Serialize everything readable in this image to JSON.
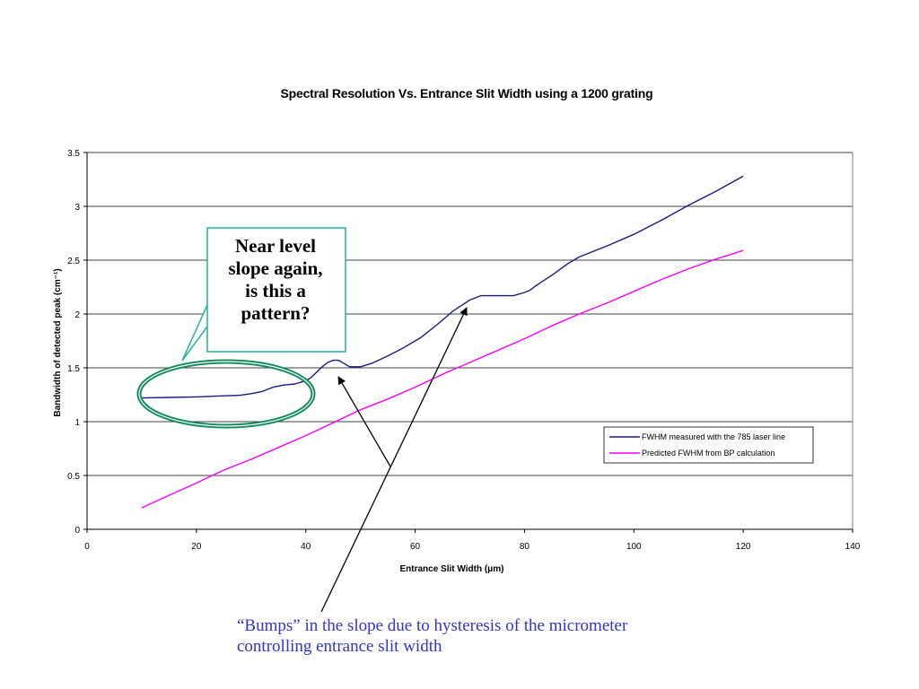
{
  "chart_data": {
    "type": "line",
    "title": "Spectral Resolution Vs. Entrance Slit Width using a 1200 grating",
    "xlabel": "Entrance Slit Width (μm)",
    "ylabel": "Bandwidth of detected peak (cm⁻¹)",
    "xlim": [
      0,
      140
    ],
    "ylim": [
      0,
      3.5
    ],
    "xticks": [
      0,
      20,
      40,
      60,
      80,
      100,
      120,
      140
    ],
    "yticks": [
      0,
      0.5,
      1,
      1.5,
      2,
      2.5,
      3,
      3.5
    ],
    "xtick_labels": [
      "0",
      "20",
      "40",
      "60",
      "80",
      "100",
      "120",
      "140"
    ],
    "ytick_labels": [
      "0",
      "0.5",
      "1",
      "1.5",
      "2",
      "2.5",
      "3",
      "3.5"
    ],
    "grid": "horizontal",
    "legend_position": "bottom-right",
    "series": [
      {
        "name": "FWHM measured with the 785 laser line",
        "color": "#1a1a80",
        "x": [
          10,
          15,
          20,
          25,
          28,
          30,
          32,
          34,
          36,
          38,
          40,
          41,
          42,
          43,
          44,
          45,
          46,
          47,
          48,
          50,
          52,
          55,
          58,
          61,
          64,
          67,
          70,
          72,
          75,
          78,
          80,
          81,
          82,
          85,
          88,
          90,
          95,
          100,
          105,
          110,
          115,
          120
        ],
        "y": [
          1.22,
          1.225,
          1.23,
          1.24,
          1.245,
          1.26,
          1.28,
          1.32,
          1.34,
          1.35,
          1.38,
          1.41,
          1.46,
          1.51,
          1.55,
          1.57,
          1.57,
          1.54,
          1.51,
          1.51,
          1.54,
          1.61,
          1.69,
          1.78,
          1.9,
          2.03,
          2.13,
          2.17,
          2.17,
          2.17,
          2.2,
          2.22,
          2.26,
          2.36,
          2.47,
          2.53,
          2.63,
          2.74,
          2.87,
          3.01,
          3.14,
          3.28
        ]
      },
      {
        "name": "Predicted FWHM from BP calculation",
        "color": "#ff00ff",
        "x": [
          10,
          20,
          25,
          30,
          35,
          40,
          45,
          50,
          55,
          60,
          65,
          70,
          75,
          80,
          85,
          90,
          95,
          100,
          105,
          110,
          115,
          120
        ],
        "y": [
          0.2,
          0.43,
          0.55,
          0.65,
          0.76,
          0.87,
          0.99,
          1.11,
          1.21,
          1.32,
          1.44,
          1.55,
          1.66,
          1.77,
          1.89,
          2.0,
          2.1,
          2.21,
          2.32,
          2.42,
          2.51,
          2.59
        ]
      }
    ]
  },
  "annotations": {
    "callout_text": "Near level\nslope again,\nis this a\npattern?",
    "bottom_note": "“Bumps” in the slope due to hysteresis of the micrometer controlling entrance slit width",
    "callout_border_color": "#22b39a",
    "ellipse_color": "#0f8a5a",
    "arrow_color": "#000000"
  }
}
